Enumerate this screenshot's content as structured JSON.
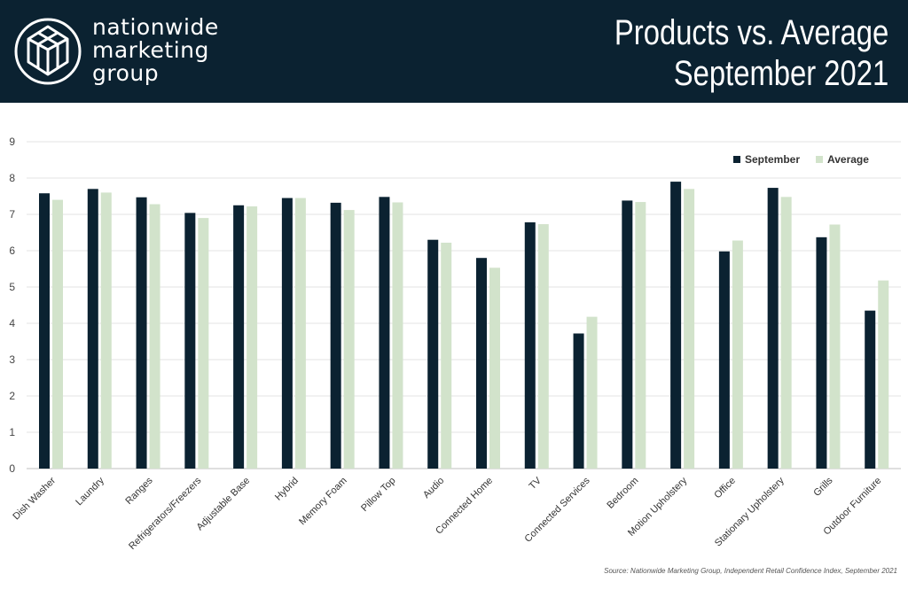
{
  "header": {
    "brand_line1": "nationwide",
    "brand_line2": "marketing",
    "brand_line3": "group",
    "title_line1": "Products vs. Average",
    "title_line2": "September 2021",
    "background_color": "#0b2231"
  },
  "source": "Source: Nationwide Marketing Group, Independent Retail Confidence Index, September 2021",
  "chart_data": {
    "type": "bar",
    "categories": [
      "Dish Washer",
      "Laundry",
      "Ranges",
      "Refrigerators/Freezers",
      "Adjustable Base",
      "Hybrid",
      "Memory Foam",
      "Pillow Top",
      "Audio",
      "Connected Home",
      "TV",
      "Connected Services",
      "Bedroom",
      "Motion Upholstery",
      "Office",
      "Stationary Upholstery",
      "Grills",
      "Outdoor Furniture"
    ],
    "series": [
      {
        "name": "September",
        "color": "#0b2231",
        "values": [
          7.58,
          7.7,
          7.47,
          7.04,
          7.25,
          7.45,
          7.32,
          7.48,
          6.3,
          5.8,
          6.78,
          3.72,
          7.38,
          7.9,
          5.98,
          7.73,
          6.37,
          4.35
        ]
      },
      {
        "name": "Average",
        "color": "#d2e3cb",
        "values": [
          7.4,
          7.6,
          7.28,
          6.9,
          7.22,
          7.45,
          7.12,
          7.33,
          6.22,
          5.53,
          6.73,
          4.18,
          7.34,
          7.7,
          6.28,
          7.48,
          6.72,
          5.18
        ]
      }
    ],
    "ylim": [
      0,
      9
    ],
    "yticks": [
      0,
      1,
      2,
      3,
      4,
      5,
      6,
      7,
      8,
      9
    ],
    "grid": true,
    "legend_position": "top-right",
    "xlabel": "",
    "ylabel": ""
  }
}
